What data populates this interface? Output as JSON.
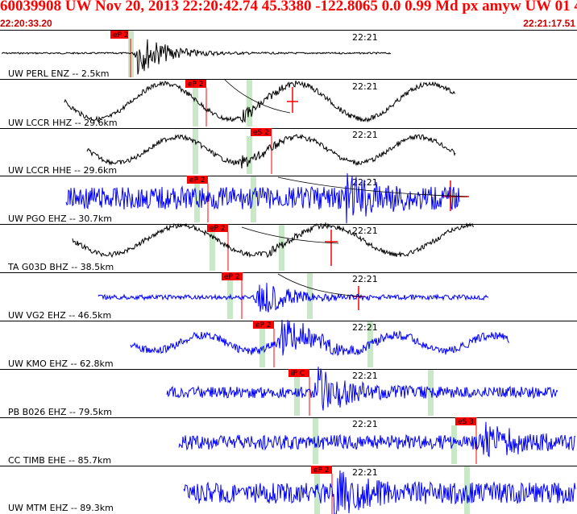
{
  "header": {
    "title": "60039908 UW Nov 20, 2013 22:20:42.74   45.3380 -122.8065  0.0 0.99 Md px amyw UW 01    4",
    "time_start": "22:20:33.20",
    "time_end": "22:21:17.51"
  },
  "colors": {
    "header_text": "#ff0000",
    "pick_box": "#ff0000",
    "pick_line": "#ff0000",
    "shade": "#c8e8c8",
    "trace_black": "#000000",
    "trace_blue": "#0000ff"
  },
  "minute_label": "22:21",
  "traces": [
    {
      "label": "UW PERL ENZ -- 2.5km",
      "color": "black",
      "pick": "eP 2",
      "shade": true,
      "s_pick": false
    },
    {
      "label": "UW LCCR HHZ -- 29.6km",
      "color": "black",
      "pick": "eP 2",
      "shade": true,
      "s_pick": true
    },
    {
      "label": "UW LCCR HHE -- 29.6km",
      "color": "black",
      "pick": "eS 2",
      "shade": true,
      "s_pick": false
    },
    {
      "label": "UW PGO EHZ -- 30.7km",
      "color": "blue",
      "pick": "eP 2",
      "shade": true,
      "s_pick": true
    },
    {
      "label": "TA G03D BHZ -- 38.5km",
      "color": "black",
      "pick": "eP 2",
      "shade": true,
      "s_pick": true
    },
    {
      "label": "UW VG2 EHZ -- 46.5km",
      "color": "blue",
      "pick": "eP 2",
      "shade": true,
      "s_pick": true
    },
    {
      "label": "UW KMO EHZ -- 62.8km",
      "color": "blue",
      "pick": "eP 2",
      "shade": true,
      "s_pick": false
    },
    {
      "label": "PB B026 EHZ -- 79.5km",
      "color": "blue",
      "pick": "iP C",
      "shade": true,
      "s_pick": false
    },
    {
      "label": "CC TIMB EHE -- 85.7km",
      "color": "blue",
      "pick": "eS 3",
      "shade": true,
      "s_pick": false
    },
    {
      "label": "UW MTM EHZ -- 89.3km",
      "color": "blue",
      "pick": "eP 2",
      "shade": true,
      "s_pick": false
    }
  ]
}
